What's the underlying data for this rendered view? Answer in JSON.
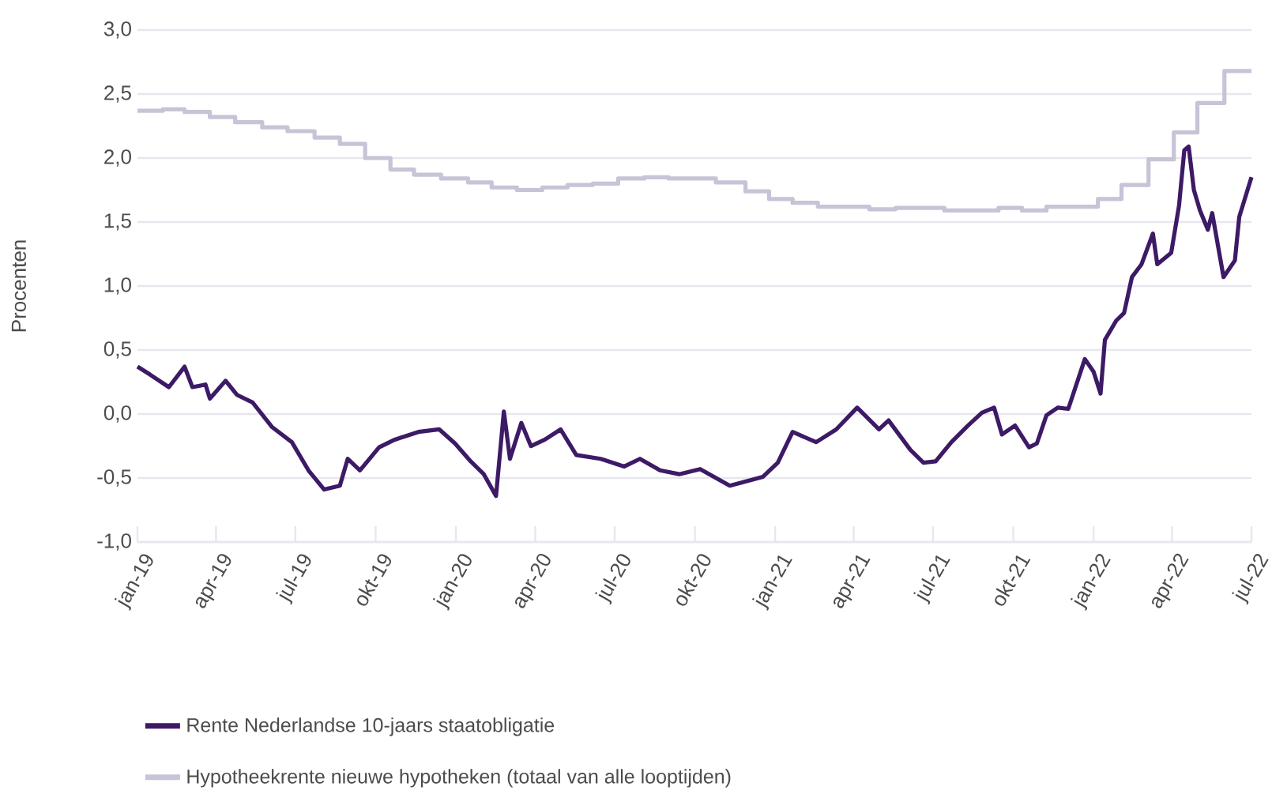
{
  "chart_data": {
    "type": "line",
    "ylabel": "Procenten",
    "xlim": [
      "2019-01-01",
      "2022-07-01"
    ],
    "ylim": [
      -1,
      3
    ],
    "xticks": [
      {
        "value": "2019-01-01",
        "label": "jan-19"
      },
      {
        "value": "2019-04-01",
        "label": "apr-19"
      },
      {
        "value": "2019-07-01",
        "label": "jul-19"
      },
      {
        "value": "2019-10-01",
        "label": "okt-19"
      },
      {
        "value": "2020-01-01",
        "label": "jan-20"
      },
      {
        "value": "2020-04-01",
        "label": "apr-20"
      },
      {
        "value": "2020-07-01",
        "label": "jul-20"
      },
      {
        "value": "2020-10-01",
        "label": "okt-20"
      },
      {
        "value": "2021-01-01",
        "label": "jan-21"
      },
      {
        "value": "2021-04-01",
        "label": "apr-21"
      },
      {
        "value": "2021-07-01",
        "label": "jul-21"
      },
      {
        "value": "2021-10-01",
        "label": "okt-21"
      },
      {
        "value": "2022-01-01",
        "label": "jan-22"
      },
      {
        "value": "2022-04-01",
        "label": "apr-22"
      },
      {
        "value": "2022-07-01",
        "label": "jul-22"
      }
    ],
    "yticks": [
      {
        "value": -1,
        "label": "-1,0"
      },
      {
        "value": -0.5,
        "label": "-0,5"
      },
      {
        "value": 0,
        "label": "0,0"
      },
      {
        "value": 0.5,
        "label": "0,5"
      },
      {
        "value": 1,
        "label": "1,0"
      },
      {
        "value": 1.5,
        "label": "1,5"
      },
      {
        "value": 2,
        "label": "2,0"
      },
      {
        "value": 2.5,
        "label": "2,5"
      },
      {
        "value": 3,
        "label": "3,0"
      }
    ],
    "grid": "y",
    "legend": "bottom",
    "series": [
      {
        "name": "Rente Nederlandse 10-jaars staatobligatie",
        "color": "#3d1a66",
        "x": [
          "2019-01-01",
          "2019-01-15",
          "2019-02-06",
          "2019-02-24",
          "2019-03-05",
          "2019-03-20",
          "2019-03-25",
          "2019-04-12",
          "2019-04-25",
          "2019-05-13",
          "2019-06-04",
          "2019-06-27",
          "2019-07-16",
          "2019-08-03",
          "2019-08-21",
          "2019-08-30",
          "2019-09-13",
          "2019-10-05",
          "2019-10-23",
          "2019-11-19",
          "2019-12-13",
          "2019-12-31",
          "2020-01-18",
          "2020-02-02",
          "2020-02-16",
          "2020-02-25",
          "2020-03-03",
          "2020-03-16",
          "2020-03-27",
          "2020-04-12",
          "2020-04-30",
          "2020-05-18",
          "2020-06-15",
          "2020-07-12",
          "2020-07-30",
          "2020-08-22",
          "2020-09-13",
          "2020-10-07",
          "2020-11-10",
          "2020-12-18",
          "2021-01-04",
          "2021-01-21",
          "2021-02-17",
          "2021-03-12",
          "2021-04-05",
          "2021-04-30",
          "2021-05-11",
          "2021-06-05",
          "2021-06-20",
          "2021-07-04",
          "2021-07-22",
          "2021-08-10",
          "2021-08-26",
          "2021-09-09",
          "2021-09-18",
          "2021-10-03",
          "2021-10-19",
          "2021-10-28",
          "2021-11-08",
          "2021-11-21",
          "2021-12-03",
          "2021-12-22",
          "2022-01-01",
          "2022-01-09",
          "2022-01-14",
          "2022-01-27",
          "2022-02-05",
          "2022-02-14",
          "2022-02-25",
          "2022-03-10",
          "2022-03-15",
          "2022-03-31",
          "2022-04-09",
          "2022-04-15",
          "2022-04-20",
          "2022-04-26",
          "2022-05-03",
          "2022-05-12",
          "2022-05-17",
          "2022-05-30",
          "2022-06-12",
          "2022-06-17",
          "2022-07-01"
        ],
        "values": [
          0.37,
          0.31,
          0.21,
          0.37,
          0.21,
          0.23,
          0.12,
          0.26,
          0.15,
          0.09,
          -0.1,
          -0.22,
          -0.44,
          -0.59,
          -0.56,
          -0.35,
          -0.44,
          -0.26,
          -0.2,
          -0.14,
          -0.12,
          -0.23,
          -0.37,
          -0.47,
          -0.64,
          0.02,
          -0.35,
          -0.07,
          -0.25,
          -0.2,
          -0.12,
          -0.32,
          -0.35,
          -0.41,
          -0.35,
          -0.44,
          -0.47,
          -0.43,
          -0.56,
          -0.49,
          -0.38,
          -0.14,
          -0.22,
          -0.12,
          0.05,
          -0.12,
          -0.05,
          -0.28,
          -0.38,
          -0.37,
          -0.22,
          -0.09,
          0.01,
          0.05,
          -0.16,
          -0.09,
          -0.26,
          -0.23,
          -0.01,
          0.05,
          0.04,
          0.43,
          0.33,
          0.16,
          0.58,
          0.73,
          0.79,
          1.07,
          1.17,
          1.41,
          1.17,
          1.26,
          1.63,
          2.06,
          2.09,
          1.75,
          1.59,
          1.44,
          1.57,
          1.07,
          1.2,
          1.54,
          1.85
        ]
      },
      {
        "name": "Hypotheekrente nieuwe hypotheken (totaal van alle looptijden)",
        "color": "#c8c3d6",
        "type": "step",
        "x": [
          "2019-01-01",
          "2019-01-30",
          "2019-02-24",
          "2019-03-25",
          "2019-04-23",
          "2019-05-24",
          "2019-06-22",
          "2019-07-23",
          "2019-08-21",
          "2019-09-19",
          "2019-10-18",
          "2019-11-14",
          "2019-12-15",
          "2020-01-15",
          "2020-02-11",
          "2020-03-11",
          "2020-04-09",
          "2020-05-08",
          "2020-06-06",
          "2020-07-05",
          "2020-08-04",
          "2020-09-01",
          "2020-10-25",
          "2020-11-28",
          "2020-12-25",
          "2021-01-21",
          "2021-02-19",
          "2021-04-19",
          "2021-05-19",
          "2021-07-14",
          "2021-09-14",
          "2021-10-11",
          "2021-11-08",
          "2022-01-06",
          "2022-02-02",
          "2022-03-05",
          "2022-04-03",
          "2022-04-30",
          "2022-05-31",
          "2022-07-01"
        ],
        "values": [
          2.37,
          2.38,
          2.36,
          2.32,
          2.28,
          2.24,
          2.21,
          2.16,
          2.11,
          2.0,
          1.91,
          1.87,
          1.84,
          1.81,
          1.77,
          1.75,
          1.77,
          1.79,
          1.8,
          1.84,
          1.85,
          1.84,
          1.81,
          1.74,
          1.68,
          1.65,
          1.62,
          1.6,
          1.61,
          1.59,
          1.61,
          1.59,
          1.62,
          1.68,
          1.79,
          1.99,
          2.2,
          2.43,
          2.68,
          2.68
        ]
      }
    ]
  }
}
